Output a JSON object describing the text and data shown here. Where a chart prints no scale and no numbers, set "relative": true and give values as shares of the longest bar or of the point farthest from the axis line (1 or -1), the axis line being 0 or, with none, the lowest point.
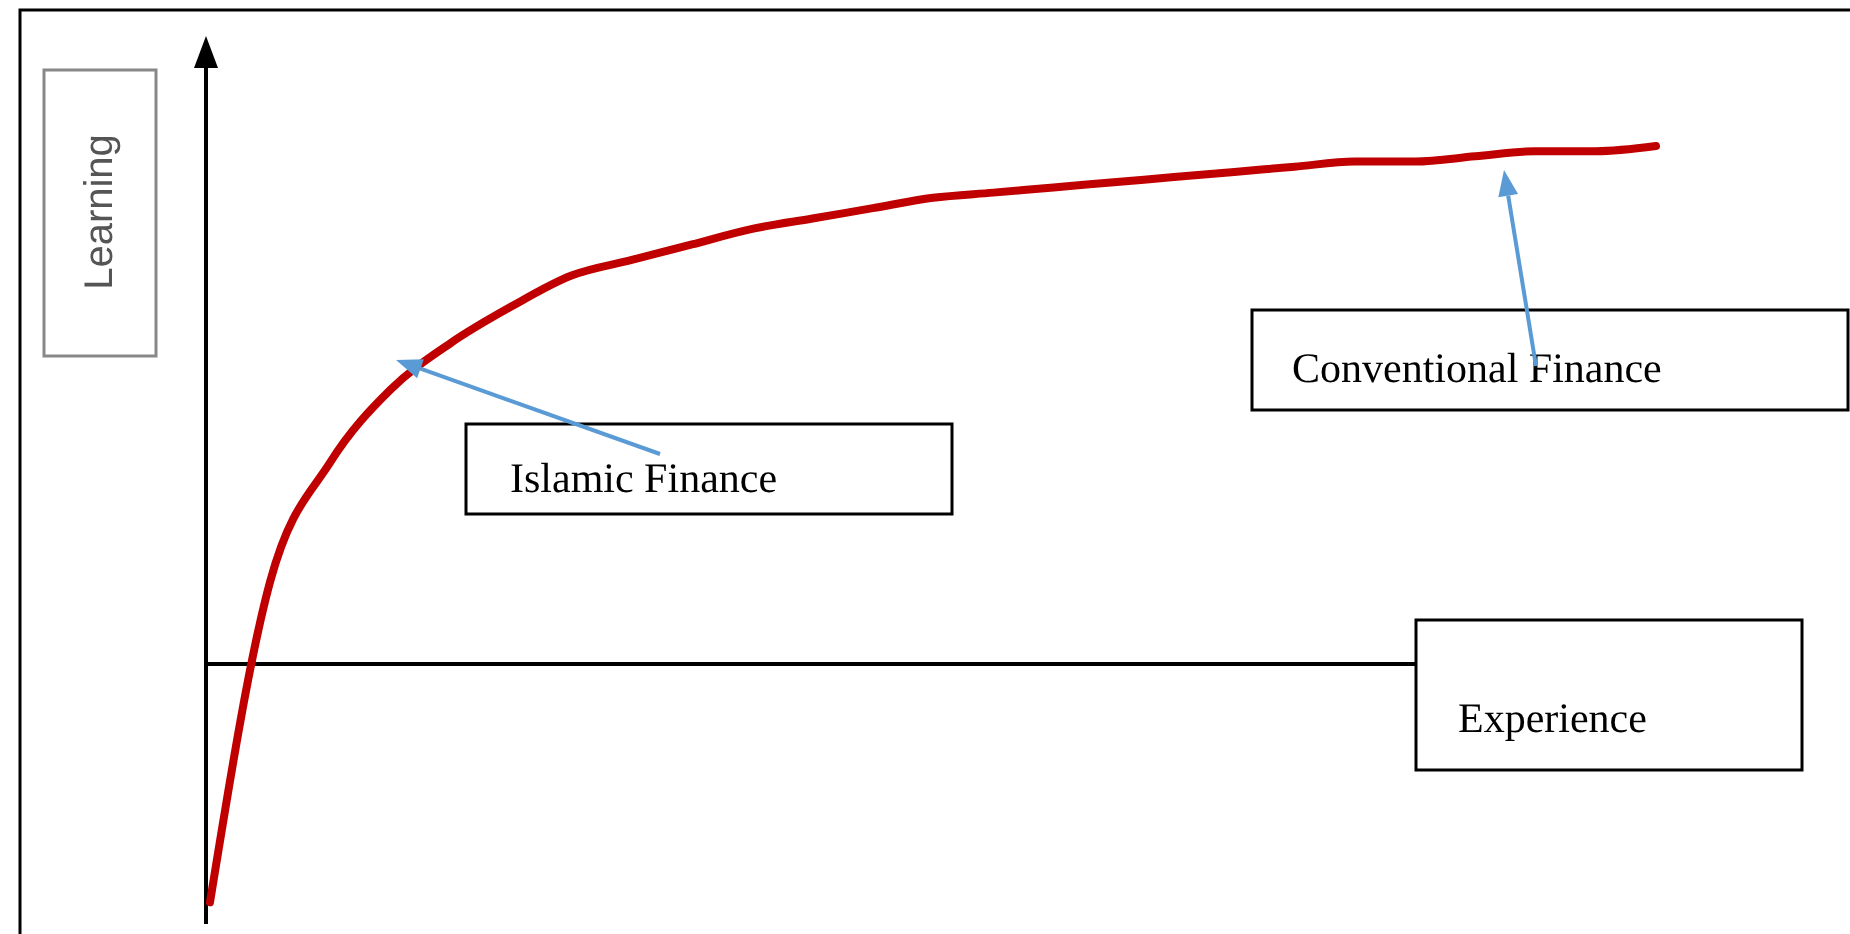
{
  "chart_data": {
    "type": "line",
    "relative": true,
    "xlabel": "Experience",
    "ylabel": "Learning",
    "categories": [
      null,
      null,
      null,
      null,
      null,
      null,
      null,
      null,
      null,
      null,
      null,
      null,
      null,
      null,
      null,
      null,
      null,
      null,
      null,
      null,
      null,
      null,
      null,
      null,
      null
    ],
    "series": [
      {
        "color": "#c00000",
        "values": [
          -0.46,
          0.16,
          0.39,
          0.53,
          0.62,
          0.69,
          0.75,
          0.78,
          0.81,
          0.84,
          0.86,
          0.88,
          0.9,
          0.91,
          0.92,
          0.93,
          0.94,
          0.95,
          0.96,
          0.97,
          0.97,
          0.98,
          0.99,
          0.99,
          1
        ]
      }
    ],
    "annotations": [
      "Islamic Finance",
      "Conventional Finance"
    ]
  }
}
